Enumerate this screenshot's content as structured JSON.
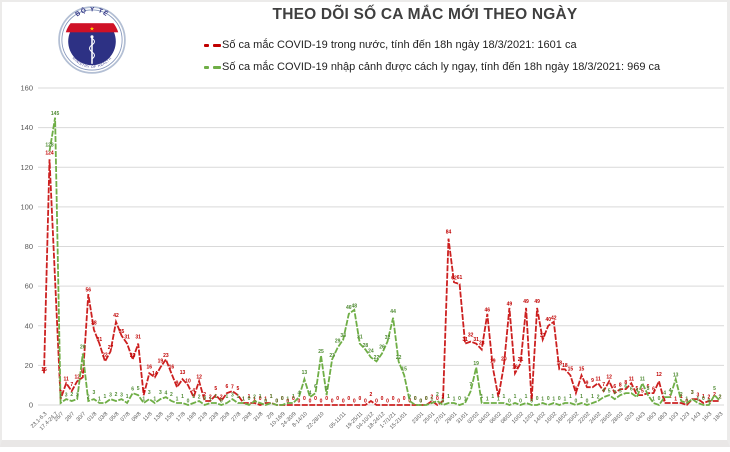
{
  "page": {
    "title": "THEO DÕI SỐ CA MẮC MỚI THEO NGÀY"
  },
  "logo": {
    "top_text": "BỘ Y TẾ",
    "bottom_text": "MINISTRY OF HEALTH",
    "star": "★"
  },
  "legend": [
    {
      "label": "Số ca mắc COVID-19 trong nước, tính đến 18h ngày 18/3/2021: 1601 ca",
      "color": "#c00000"
    },
    {
      "label": "Số ca mắc COVID-19 nhập cảnh được cách ly ngay, tính đến 18h ngày 18/3/2021: 969 ca",
      "color": "#6fae46"
    }
  ],
  "chart_data": {
    "type": "line",
    "title": "THEO DÕI SỐ CA MẮC MỚI THEO NGÀY",
    "xlabel": "",
    "ylabel": "",
    "ylim": [
      0,
      160
    ],
    "yticks": [
      0,
      20,
      40,
      60,
      80,
      100,
      120,
      140,
      160
    ],
    "grid": true,
    "legend_position": "top",
    "labels": [
      "23.1-6.3",
      "",
      "17.4-24.7",
      "26/7",
      "",
      "28/7",
      "",
      "30/7",
      "",
      "01/8",
      "",
      "03/8",
      "",
      "05/8",
      "",
      "07/8",
      "",
      "09/8",
      "",
      "11/8",
      "",
      "13/8",
      "",
      "15/8",
      "",
      "17/8",
      "",
      "19/8",
      "",
      "21/8",
      "",
      "23/8",
      "",
      "25/8",
      "",
      "27/8",
      "",
      "29/8",
      "",
      "31/8",
      "",
      "2/9",
      "",
      "10-16/9",
      "",
      "24-30/9",
      "",
      "8-14/10",
      "",
      "",
      "22-28/10",
      "",
      "",
      "",
      "05-11/11",
      "",
      "",
      "19-25/11",
      "",
      "04-10/12",
      "",
      "18-24/12",
      "",
      "1-7/1/21",
      "",
      "15-21/01",
      "",
      "",
      "23/01",
      "",
      "25/01",
      "",
      "27/01",
      "",
      "29/01",
      "",
      "31/01",
      "",
      "02/02",
      "",
      "04/02",
      "",
      "06/02",
      "",
      "08/02",
      "",
      "10/02",
      "",
      "12/02",
      "",
      "14/02",
      "",
      "16/02",
      "",
      "18/02",
      "",
      "20/02",
      "",
      "22/02",
      "",
      "24/02",
      "",
      "26/02",
      "",
      "28/02",
      "",
      "02/3",
      "",
      "04/3",
      "",
      "06/3",
      "",
      "08/3",
      "",
      "10/3",
      "",
      "12/3",
      "",
      "14/3",
      "",
      "16/3",
      "",
      "18/3"
    ],
    "series": [
      {
        "name": "Số ca mắc COVID-19 trong nước, tính đến 18h ngày 18/3/2021: 1601 ca",
        "color": "#cc2020",
        "label_color": "#c00000",
        "values": [
          16,
          124,
          null,
          3,
          11,
          7,
          12,
          14,
          56,
          38,
          31,
          22,
          27,
          42,
          35,
          31,
          23,
          31,
          5,
          16,
          14,
          19,
          23,
          16,
          9,
          13,
          10,
          4,
          12,
          2,
          2,
          5,
          2,
          6,
          7,
          5,
          1,
          1,
          1,
          0,
          1,
          1,
          0,
          0,
          0,
          0,
          0,
          0,
          0,
          0,
          0,
          0,
          0,
          0,
          0,
          0,
          0,
          0,
          0,
          2,
          0,
          0,
          0,
          0,
          0,
          0,
          0,
          0,
          0,
          0,
          2,
          0,
          2,
          84,
          62,
          61,
          31,
          32,
          31,
          28,
          46,
          19,
          4,
          20,
          49,
          16,
          21,
          49,
          2,
          49,
          33,
          40,
          42,
          18,
          18,
          15,
          6,
          15,
          9,
          9,
          11,
          7,
          12,
          6,
          8,
          8,
          11,
          5,
          5,
          6,
          6,
          12,
          1,
          1,
          1,
          1,
          0,
          3,
          3,
          1,
          2,
          2,
          2
        ]
      },
      {
        "name": "Số ca mắc COVID-19 nhập cảnh được cách ly ngay, tính đến 18h ngày 18/3/2021: 969 ca",
        "color": "#6fae46",
        "label_color": "#4e8a32",
        "values": [
          null,
          128,
          145,
          1,
          3,
          2,
          3,
          26,
          2,
          3,
          1,
          1,
          3,
          2,
          3,
          1,
          6,
          5,
          1,
          3,
          1,
          3,
          4,
          2,
          1,
          1,
          0,
          1,
          2,
          0,
          1,
          1,
          0,
          1,
          3,
          1,
          1,
          0,
          2,
          1,
          0,
          1,
          0,
          0,
          1,
          1,
          4,
          13,
          4,
          6,
          25,
          5,
          23,
          29,
          33,
          46,
          48,
          31,
          28,
          24,
          22,
          26,
          32,
          44,
          22,
          15,
          2,
          0,
          0,
          0,
          1,
          2,
          0,
          1,
          1,
          0,
          1,
          7,
          19,
          1,
          1,
          1,
          1,
          1,
          0,
          1,
          0,
          1,
          0,
          0,
          1,
          0,
          1,
          0,
          1,
          1,
          0,
          1,
          0,
          1,
          2,
          4,
          5,
          3,
          5,
          6,
          6,
          4,
          11,
          5,
          1,
          0,
          4,
          4,
          13,
          2,
          1,
          3,
          1,
          0,
          0,
          5,
          2
        ]
      }
    ]
  }
}
